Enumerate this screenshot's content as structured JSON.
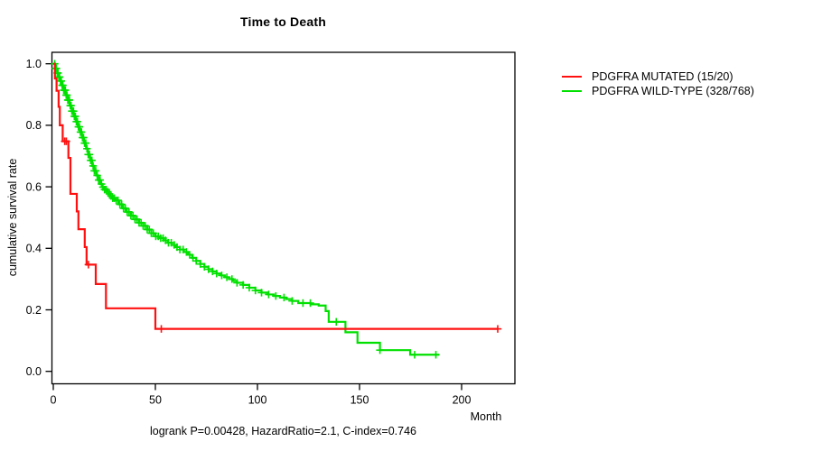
{
  "title": "Time to Death",
  "y_axis": {
    "label": "cumulative survival rate",
    "ticks": [
      0.0,
      0.2,
      0.4,
      0.6,
      0.8,
      1.0
    ]
  },
  "x_axis": {
    "label": "Month",
    "ticks": [
      0,
      50,
      100,
      150,
      200
    ]
  },
  "legend": {
    "items": [
      {
        "label": "PDGFRA MUTATED (15/20)",
        "color": "#ff1010"
      },
      {
        "label": "PDGFRA WILD-TYPE (328/768)",
        "color": "#00e000"
      }
    ]
  },
  "caption": "logrank P=0.00428, HazardRatio=2.1, C-index=0.746",
  "chart_data": {
    "type": "line",
    "subtype": "kaplan-meier-step",
    "title": "Time to Death",
    "xlabel": "Month",
    "ylabel": "cumulative survival rate",
    "xlim": [
      0,
      225
    ],
    "ylim": [
      0,
      1
    ],
    "grid": false,
    "legend_position": "right-outside",
    "series": [
      {
        "name": "PDGFRA MUTATED (15/20)",
        "color": "#ff1010",
        "events": 15,
        "n": 20,
        "steps": [
          [
            0,
            1.0
          ],
          [
            0.8,
            0.952
          ],
          [
            1.6,
            0.912
          ],
          [
            2.6,
            0.86
          ],
          [
            3.2,
            0.8
          ],
          [
            4.6,
            0.748
          ],
          [
            7.4,
            0.694
          ],
          [
            8.4,
            0.577
          ],
          [
            11.5,
            0.52
          ],
          [
            12.3,
            0.462
          ],
          [
            15.4,
            0.404
          ],
          [
            16.3,
            0.347
          ],
          [
            20.8,
            0.284
          ],
          [
            25.8,
            0.205
          ],
          [
            50,
            0.138
          ]
        ],
        "end_month": 218,
        "censor_months": [
          5.6,
          6.4,
          17.2,
          52.9,
          217.7
        ]
      },
      {
        "name": "PDGFRA WILD-TYPE (328/768)",
        "color": "#00e000",
        "events": 328,
        "n": 768,
        "steps": [
          [
            0,
            1.0
          ],
          [
            0.8,
            0.985
          ],
          [
            1.6,
            0.97
          ],
          [
            2.4,
            0.957
          ],
          [
            3.2,
            0.944
          ],
          [
            4,
            0.93
          ],
          [
            5,
            0.914
          ],
          [
            6,
            0.898
          ],
          [
            7,
            0.882
          ],
          [
            8,
            0.864
          ],
          [
            9,
            0.846
          ],
          [
            10,
            0.829
          ],
          [
            11,
            0.812
          ],
          [
            12,
            0.795
          ],
          [
            13,
            0.778
          ],
          [
            14,
            0.76
          ],
          [
            15,
            0.742
          ],
          [
            16,
            0.724
          ],
          [
            17,
            0.705
          ],
          [
            18,
            0.686
          ],
          [
            19,
            0.668
          ],
          [
            20,
            0.652
          ],
          [
            21,
            0.637
          ],
          [
            22,
            0.622
          ],
          [
            23,
            0.609
          ],
          [
            24,
            0.599
          ],
          [
            25,
            0.591
          ],
          [
            26,
            0.584
          ],
          [
            27,
            0.577
          ],
          [
            28,
            0.57
          ],
          [
            29,
            0.563
          ],
          [
            30,
            0.556
          ],
          [
            32,
            0.543
          ],
          [
            34,
            0.53
          ],
          [
            36,
            0.518
          ],
          [
            38,
            0.506
          ],
          [
            40,
            0.494
          ],
          [
            42,
            0.483
          ],
          [
            44,
            0.473
          ],
          [
            46,
            0.461
          ],
          [
            48,
            0.449
          ],
          [
            50,
            0.439
          ],
          [
            52,
            0.433
          ],
          [
            54,
            0.426
          ],
          [
            56,
            0.418
          ],
          [
            58,
            0.411
          ],
          [
            60,
            0.404
          ],
          [
            62,
            0.396
          ],
          [
            64,
            0.388
          ],
          [
            66,
            0.379
          ],
          [
            68,
            0.369
          ],
          [
            70,
            0.359
          ],
          [
            72,
            0.349
          ],
          [
            74,
            0.34
          ],
          [
            76,
            0.332
          ],
          [
            78,
            0.325
          ],
          [
            80,
            0.318
          ],
          [
            82,
            0.312
          ],
          [
            84,
            0.306
          ],
          [
            86,
            0.3
          ],
          [
            88,
            0.294
          ],
          [
            90,
            0.288
          ],
          [
            93,
            0.281
          ],
          [
            96,
            0.272
          ],
          [
            99,
            0.263
          ],
          [
            102,
            0.256
          ],
          [
            105,
            0.25
          ],
          [
            108,
            0.245
          ],
          [
            111,
            0.24
          ],
          [
            114,
            0.235
          ],
          [
            117,
            0.229
          ],
          [
            120,
            0.222
          ],
          [
            126,
            0.218
          ],
          [
            130,
            0.214
          ],
          [
            133.4,
            0.196
          ],
          [
            134.9,
            0.161
          ],
          [
            143.1,
            0.127
          ],
          [
            149,
            0.093
          ],
          [
            160,
            0.069
          ],
          [
            174.8,
            0.054
          ]
        ],
        "end_month": 189,
        "censor_months": [
          0.7,
          1.1,
          1.5,
          1.9,
          2.3,
          2.7,
          3.1,
          3.5,
          3.9,
          4.3,
          4.7,
          5.1,
          5.5,
          5.9,
          6.3,
          6.7,
          7.1,
          7.5,
          7.9,
          8.3,
          8.7,
          9.1,
          9.5,
          9.9,
          10.3,
          10.8,
          11.3,
          11.8,
          12.3,
          12.8,
          13.3,
          13.8,
          14.3,
          14.8,
          15.3,
          15.9,
          16.5,
          17.1,
          17.7,
          18.3,
          18.9,
          19.5,
          20.1,
          20.8,
          21.5,
          22.2,
          22.9,
          23.6,
          24.3,
          25.1,
          25.9,
          26.7,
          27.5,
          28.3,
          29.1,
          29.9,
          30.8,
          31.7,
          32.6,
          33.5,
          34.4,
          35.3,
          36.2,
          37.1,
          38,
          39,
          40,
          41,
          42,
          43,
          44,
          45,
          46,
          47,
          48,
          49,
          50.2,
          51.4,
          52.6,
          53.8,
          55,
          56.4,
          57.8,
          59.2,
          60.6,
          62,
          63.6,
          65.2,
          66.8,
          68.4,
          70,
          72,
          74,
          76,
          78,
          80,
          82.5,
          85,
          87.5,
          90,
          93,
          96,
          99,
          102,
          105.5,
          109,
          113,
          117,
          122.3,
          125.9,
          138.6,
          160,
          177,
          187.4
        ]
      }
    ]
  }
}
